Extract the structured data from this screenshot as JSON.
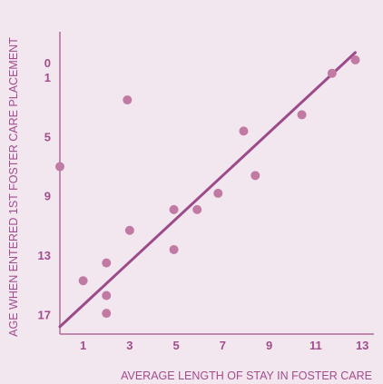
{
  "chart_data": {
    "type": "scatter",
    "title": "",
    "xlabel": "AVERAGE LENGTH OF STAY IN FOSTER CARE",
    "ylabel": "AGE WHEN ENTERED 1ST FOSTER CARE PLACEMENT",
    "x_ticks": [
      "1",
      "3",
      "5",
      "7",
      "9",
      "11",
      "13"
    ],
    "y_ticks": [
      "0",
      "1",
      "5",
      "9",
      "13",
      "17"
    ],
    "xlim": [
      0,
      13.5
    ],
    "ylim": [
      18.3,
      -2.1
    ],
    "y_inverted": true,
    "grid": false,
    "legend": "none",
    "marker_color": "#c07aa3",
    "line_color": "#9c4b8a",
    "axis_color": "#b06a98",
    "text_color": "#a24d8c",
    "points": [
      {
        "x": 0.0,
        "y": 7.0
      },
      {
        "x": 2.9,
        "y": 2.5
      },
      {
        "x": 1.0,
        "y": 14.7
      },
      {
        "x": 2.0,
        "y": 13.5
      },
      {
        "x": 2.0,
        "y": 15.7
      },
      {
        "x": 2.0,
        "y": 16.9
      },
      {
        "x": 3.0,
        "y": 11.3
      },
      {
        "x": 4.9,
        "y": 9.9
      },
      {
        "x": 4.9,
        "y": 12.6
      },
      {
        "x": 5.9,
        "y": 9.9
      },
      {
        "x": 6.8,
        "y": 8.8
      },
      {
        "x": 7.9,
        "y": 4.6
      },
      {
        "x": 8.4,
        "y": 7.6
      },
      {
        "x": 10.4,
        "y": 3.5
      },
      {
        "x": 11.7,
        "y": 0.7
      },
      {
        "x": 12.7,
        "y": -0.2
      }
    ],
    "trend_line": {
      "x": [
        0.0,
        12.7
      ],
      "y": [
        17.8,
        -0.7
      ]
    }
  }
}
